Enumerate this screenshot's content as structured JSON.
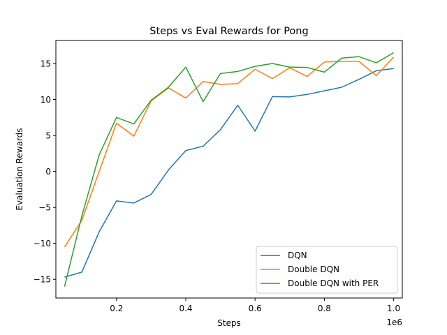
{
  "chart_data": {
    "type": "line",
    "title": "Steps vs Eval Rewards for Pong",
    "xlabel": "Steps",
    "ylabel": "Evaluation Rewards",
    "x_offset_text": "1e6",
    "xlim": [
      0.025,
      1.025
    ],
    "ylim": [
      -17.6,
      18.2
    ],
    "x_ticks": [
      0.2,
      0.4,
      0.6,
      0.8,
      1.0
    ],
    "x_tick_labels": [
      "0.2",
      "0.4",
      "0.6",
      "0.8",
      "1.0"
    ],
    "y_ticks": [
      -15,
      -10,
      -5,
      0,
      5,
      10,
      15
    ],
    "y_tick_labels": [
      "−15",
      "−10",
      "−5",
      "0",
      "5",
      "10",
      "15"
    ],
    "grid": false,
    "legend_position": "lower-right",
    "x": [
      0.05,
      0.1,
      0.15,
      0.2,
      0.25,
      0.3,
      0.35,
      0.4,
      0.45,
      0.5,
      0.55,
      0.6,
      0.65,
      0.7,
      0.75,
      0.8,
      0.85,
      0.9,
      0.95,
      1.0
    ],
    "series": [
      {
        "name": "DQN",
        "color": "#1f77b4",
        "values": [
          -14.7,
          -14.0,
          -8.4,
          -4.1,
          -4.4,
          -3.2,
          0.2,
          2.9,
          3.5,
          5.8,
          9.2,
          5.6,
          10.4,
          10.35,
          10.7,
          11.2,
          11.7,
          12.8,
          14.0,
          14.3
        ]
      },
      {
        "name": "Double DQN",
        "color": "#ff7f0e",
        "values": [
          -10.5,
          -6.8,
          0.0,
          6.7,
          4.9,
          9.8,
          11.6,
          10.2,
          12.5,
          12.1,
          12.2,
          14.2,
          12.9,
          14.4,
          13.2,
          15.2,
          15.3,
          15.3,
          13.3,
          15.9
        ]
      },
      {
        "name": "Double DQN with PER",
        "color": "#2ca02c",
        "values": [
          -16.0,
          -6.2,
          2.3,
          7.5,
          6.6,
          9.9,
          11.7,
          14.5,
          9.7,
          13.6,
          13.9,
          14.6,
          15.0,
          14.5,
          14.45,
          13.8,
          15.75,
          15.95,
          15.1,
          16.5
        ]
      }
    ]
  }
}
